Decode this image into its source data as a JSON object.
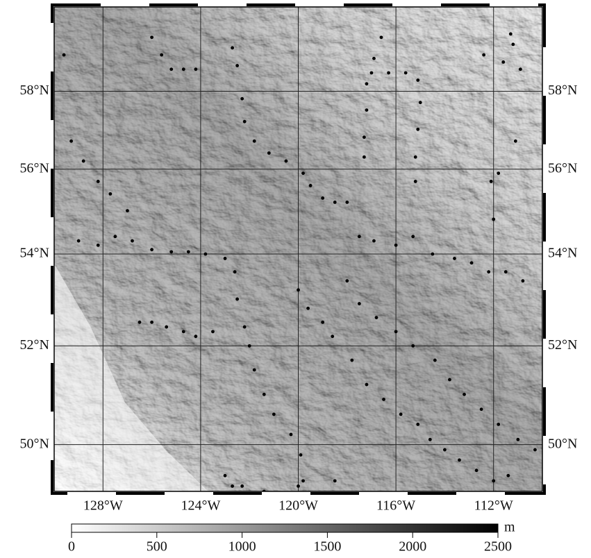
{
  "chart_data": {
    "type": "map",
    "xlim": [
      -130,
      -110
    ],
    "ylim": [
      49.1,
      60.4
    ],
    "xticks": [
      {
        "value": -128,
        "label": "128°W"
      },
      {
        "value": -124,
        "label": "124°W"
      },
      {
        "value": -120,
        "label": "120°W"
      },
      {
        "value": -116,
        "label": "116°W"
      },
      {
        "value": -112,
        "label": "112°W"
      }
    ],
    "yticks": [
      {
        "value": 50,
        "label": "50°N"
      },
      {
        "value": 52,
        "label": "52°N"
      },
      {
        "value": 54,
        "label": "54°N"
      },
      {
        "value": 56,
        "label": "56°N"
      },
      {
        "value": 58,
        "label": "58°N"
      }
    ],
    "grid": true,
    "points": {
      "color": "#000000",
      "lon": [
        -129,
        -128.2,
        -127.5,
        -126.8,
        -126,
        -125.2,
        -124.5,
        -123.8,
        -123,
        -126,
        -125.6,
        -125.2,
        -124.7,
        -124.2,
        -122.7,
        -122.5,
        -122.3,
        -122.2,
        -121.8,
        -121.2,
        -120.5,
        -116.6,
        -116.9,
        -117.2,
        -117.2,
        -117.3,
        -117.3,
        -117,
        -116.3,
        -115.6,
        -115.1,
        -115.0,
        -115.1,
        -115.2,
        -115.2,
        -111.3,
        -111.2,
        -112.4,
        -111.6,
        -110.9,
        -111.1,
        -111.8,
        -112.1,
        -112.0,
        -119.8,
        -119.5,
        -119.0,
        -118.5,
        -118.0,
        -117.5,
        -116.9,
        -116,
        -115.3,
        -114.5,
        -113.6,
        -112.9,
        -112.2,
        -111.5,
        -110.8,
        -120,
        -119.6,
        -119.0,
        -118.6,
        -117.8,
        -117.2,
        -116.5,
        -115.8,
        -115.1,
        -114.6,
        -114,
        -113.4,
        -112.7,
        -112.0,
        -111.4,
        -118,
        -117.5,
        -116.8,
        -116.0,
        -115.3,
        -114.4,
        -113.8,
        -113.2,
        -112.5,
        -111.8,
        -111,
        -110.3,
        -122.6,
        -122.5,
        -122.2,
        -122.0,
        -121.8,
        -121.4,
        -121.0,
        -120.3,
        -119.9,
        -119.8,
        -123,
        -122.7,
        -122.3,
        -121.4,
        -120,
        -118.5,
        -126.5,
        -126,
        -125.4,
        -124.7,
        -124.2,
        -123.5,
        -129.6,
        -129.3,
        -128.8,
        -128.2,
        -127.7,
        -127.0
      ],
      "lat": [
        54.3,
        54.2,
        54.4,
        54.3,
        54.1,
        54.05,
        54.05,
        54.0,
        53.9,
        59.5,
        59.0,
        58.6,
        58.6,
        58.6,
        59.2,
        58.7,
        57.8,
        57.2,
        56.7,
        56.4,
        56.2,
        59.5,
        58.9,
        58.2,
        57.5,
        56.8,
        56.3,
        58.5,
        58.5,
        58.5,
        58.3,
        57.7,
        57.0,
        56.3,
        55.7,
        59.6,
        59.3,
        59,
        58.8,
        58.6,
        56.7,
        55.9,
        55.7,
        54.8,
        55.9,
        55.6,
        55.3,
        55.2,
        55.2,
        54.4,
        54.3,
        54.2,
        54.4,
        54.0,
        53.9,
        53.8,
        53.6,
        53.6,
        53.4,
        53.2,
        52.8,
        52.5,
        52.2,
        51.7,
        51.2,
        50.9,
        50.6,
        50.4,
        50.1,
        49.9,
        49.7,
        49.5,
        49.3,
        49.4,
        53.4,
        52.9,
        52.6,
        52.3,
        52.0,
        51.7,
        51.3,
        51.0,
        50.7,
        50.4,
        50.1,
        49.9,
        53.6,
        53.0,
        52.4,
        52.0,
        51.5,
        51.0,
        50.6,
        50.2,
        49.8,
        49.3,
        49.4,
        49.2,
        49.2,
        49.1,
        49.2,
        49.3,
        52.5,
        52.5,
        52.4,
        52.3,
        52.2,
        52.3,
        59.0,
        56.7,
        56.2,
        55.7,
        55.4,
        55.0
      ]
    },
    "colorbar": {
      "unit": "m",
      "lim": [
        0,
        2500
      ],
      "ticks": [
        0,
        500,
        1000,
        1500,
        2000,
        2500
      ]
    }
  }
}
